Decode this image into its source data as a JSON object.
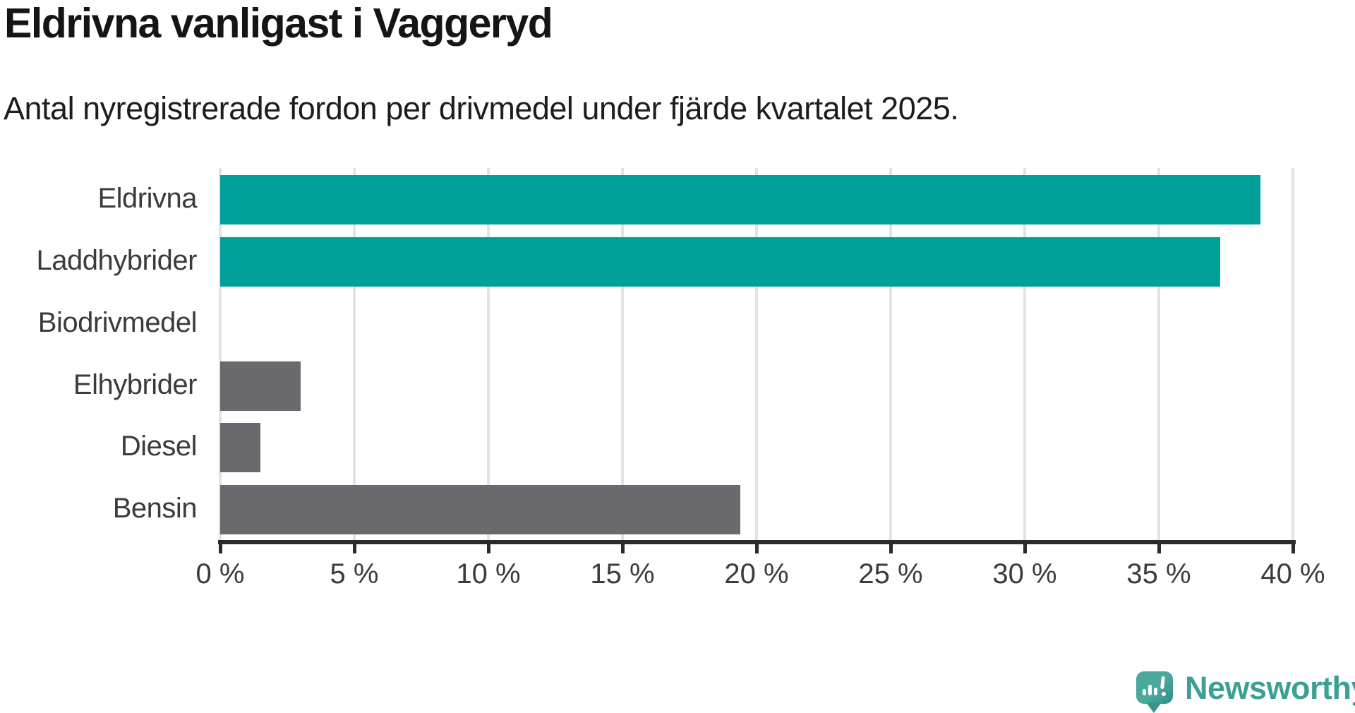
{
  "title": "Eldrivna vanligast i Vaggeryd",
  "subtitle": "Antal nyregistrerade fordon per drivmedel under fjärde kvartalet 2025.",
  "chart_data": {
    "type": "bar",
    "orientation": "horizontal",
    "categories": [
      "Eldrivna",
      "Laddhybrider",
      "Biodrivmedel",
      "Elhybrider",
      "Diesel",
      "Bensin"
    ],
    "values": [
      38.8,
      37.3,
      0,
      3.0,
      1.5,
      19.4
    ],
    "unit": "%",
    "xlim": [
      0,
      40
    ],
    "x_tick_values": [
      0,
      5,
      10,
      15,
      20,
      25,
      30,
      35,
      40
    ],
    "x_tick_labels": [
      "0 %",
      "5 %",
      "10 %",
      "15 %",
      "20 %",
      "25 %",
      "30 %",
      "35 %",
      "40 %"
    ],
    "grid": true,
    "legend": false,
    "bar_colors": [
      "#00a09a",
      "#00a09a",
      "#6a6a6e",
      "#6a6a6e",
      "#6a6a6e",
      "#6a6a6e"
    ],
    "highlight_color": "#00a09a",
    "default_color": "#6a6a6e"
  },
  "colors": {
    "background": "#ffffff",
    "title_text": "#151515",
    "label_text": "#3b3b3b",
    "axis": "#2b2b2b",
    "gridline": "#e3e3e3",
    "logo_teal": "#3ca095"
  },
  "branding": {
    "name": "Newsworthy"
  }
}
